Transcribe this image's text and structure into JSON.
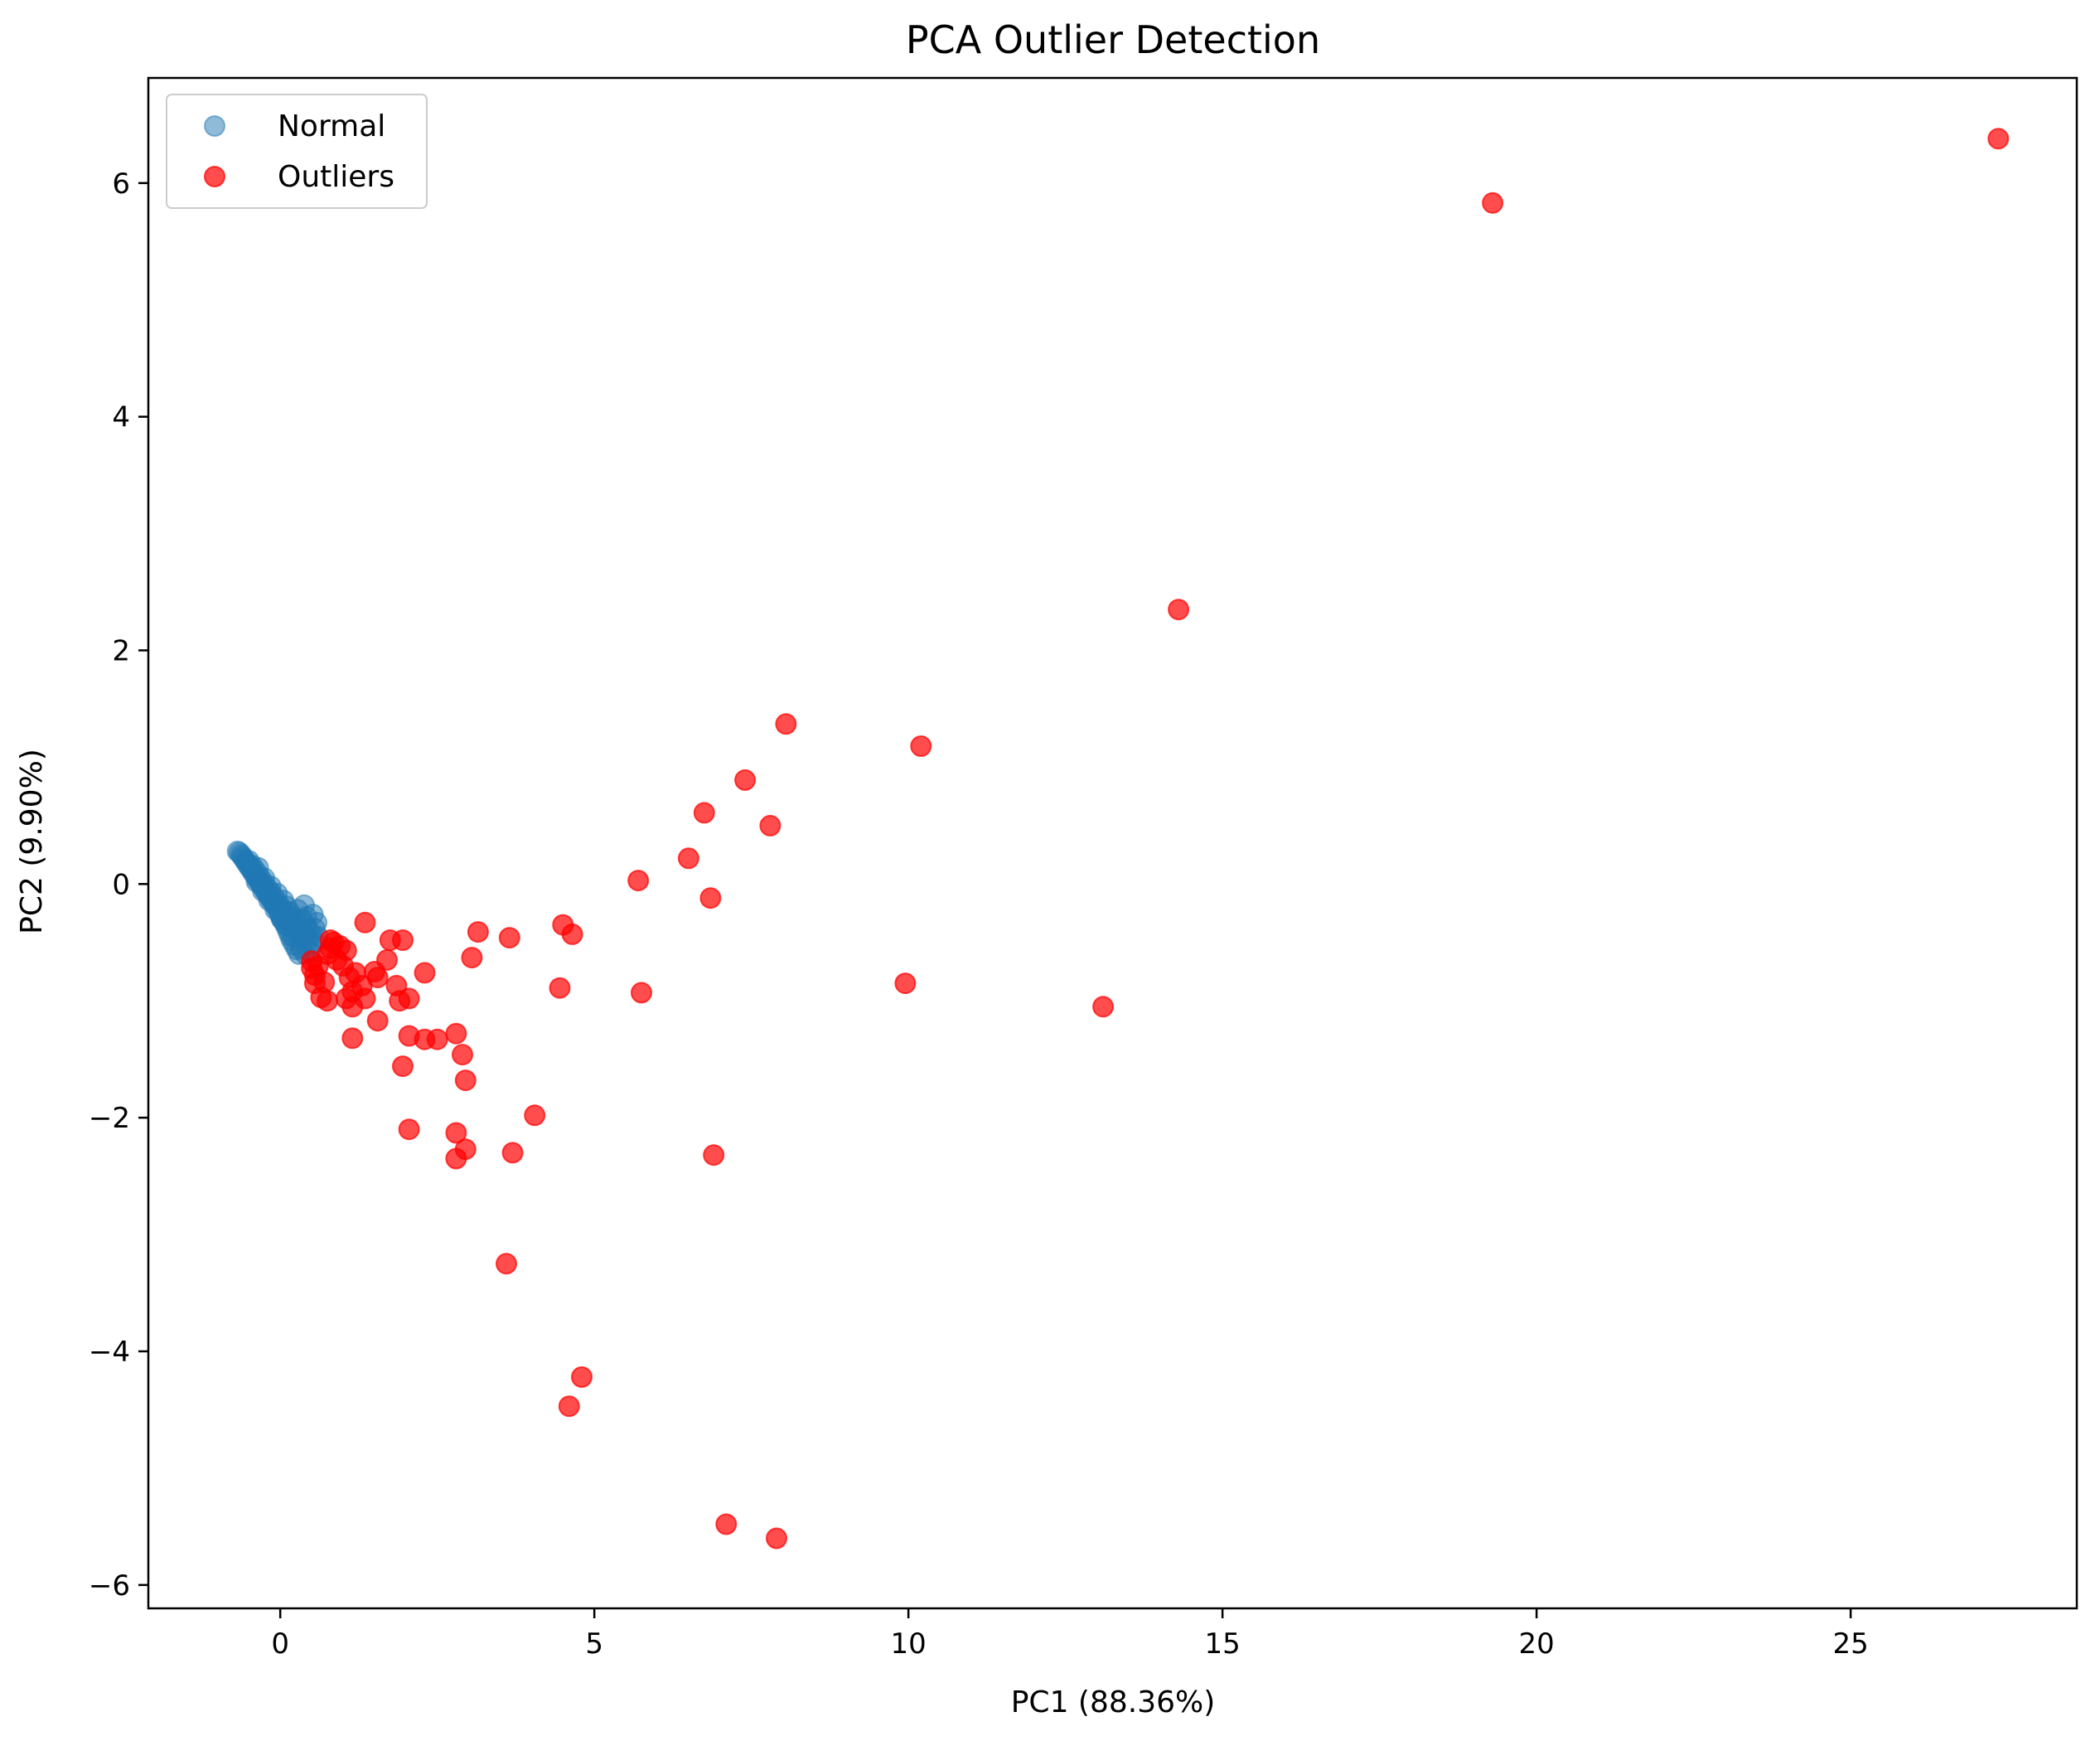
{
  "chart_data": {
    "type": "scatter",
    "title": "PCA Outlier Detection",
    "xlabel": "PC1 (88.36%)",
    "ylabel": "PC2 (9.90%)",
    "xlim": [
      -2.1,
      28.6
    ],
    "ylim": [
      -6.2,
      6.9
    ],
    "xticks": [
      0,
      5,
      10,
      15,
      20,
      25
    ],
    "xtick_labels": [
      "0",
      "5",
      "10",
      "15",
      "20",
      "25"
    ],
    "yticks": [
      -6,
      -4,
      -2,
      0,
      2,
      4,
      6
    ],
    "ytick_labels": [
      "−6",
      "−4",
      "−2",
      "0",
      "2",
      "4",
      "6"
    ],
    "grid": false,
    "legend_position": "top-left",
    "series": [
      {
        "name": "Normal",
        "color": "#1f77b4",
        "alpha": 0.5,
        "points": [
          [
            -0.68,
            0.28
          ],
          [
            -0.65,
            0.27
          ],
          [
            -0.62,
            0.25
          ],
          [
            -0.6,
            0.23
          ],
          [
            -0.57,
            0.21
          ],
          [
            -0.55,
            0.19
          ],
          [
            -0.52,
            0.17
          ],
          [
            -0.5,
            0.15
          ],
          [
            -0.47,
            0.13
          ],
          [
            -0.45,
            0.11
          ],
          [
            -0.42,
            0.09
          ],
          [
            -0.4,
            0.07
          ],
          [
            -0.37,
            0.05
          ],
          [
            -0.35,
            0.03
          ],
          [
            -0.32,
            0.01
          ],
          [
            -0.3,
            -0.01
          ],
          [
            -0.27,
            -0.03
          ],
          [
            -0.25,
            -0.05
          ],
          [
            -0.22,
            -0.07
          ],
          [
            -0.2,
            -0.09
          ],
          [
            -0.17,
            -0.11
          ],
          [
            -0.15,
            -0.13
          ],
          [
            -0.12,
            -0.15
          ],
          [
            -0.1,
            -0.17
          ],
          [
            -0.07,
            -0.19
          ],
          [
            -0.05,
            -0.21
          ],
          [
            -0.02,
            -0.24
          ],
          [
            0.0,
            -0.27
          ],
          [
            0.03,
            -0.3
          ],
          [
            0.06,
            -0.33
          ],
          [
            0.09,
            -0.36
          ],
          [
            0.12,
            -0.4
          ],
          [
            0.15,
            -0.44
          ],
          [
            0.18,
            -0.48
          ],
          [
            0.22,
            -0.52
          ],
          [
            0.26,
            -0.56
          ],
          [
            0.3,
            -0.6
          ],
          [
            -0.5,
            0.2
          ],
          [
            -0.45,
            0.16
          ],
          [
            -0.4,
            0.12
          ],
          [
            -0.35,
            0.08
          ],
          [
            -0.3,
            0.04
          ],
          [
            -0.25,
            0.0
          ],
          [
            -0.2,
            -0.04
          ],
          [
            -0.15,
            -0.07
          ],
          [
            -0.1,
            -0.11
          ],
          [
            -0.05,
            -0.15
          ],
          [
            0.0,
            -0.19
          ],
          [
            0.05,
            -0.23
          ],
          [
            0.1,
            -0.27
          ],
          [
            0.15,
            -0.31
          ],
          [
            0.2,
            -0.35
          ],
          [
            0.25,
            -0.39
          ],
          [
            0.3,
            -0.43
          ],
          [
            -0.35,
            0.14
          ],
          [
            -0.25,
            0.05
          ],
          [
            -0.15,
            -0.02
          ],
          [
            -0.05,
            -0.08
          ],
          [
            0.05,
            -0.14
          ],
          [
            0.1,
            -0.19
          ],
          [
            0.15,
            -0.24
          ],
          [
            0.2,
            -0.28
          ],
          [
            0.25,
            -0.32
          ],
          [
            0.3,
            -0.36
          ],
          [
            0.35,
            -0.4
          ],
          [
            0.4,
            -0.44
          ],
          [
            0.45,
            -0.48
          ],
          [
            0.5,
            -0.52
          ],
          [
            0.35,
            -0.3
          ],
          [
            0.4,
            -0.35
          ],
          [
            0.45,
            -0.39
          ],
          [
            0.5,
            -0.43
          ],
          [
            0.55,
            -0.38
          ],
          [
            0.38,
            -0.18
          ],
          [
            0.52,
            -0.26
          ],
          [
            0.58,
            -0.33
          ],
          [
            0.6,
            -0.45
          ],
          [
            0.28,
            -0.22
          ],
          [
            0.42,
            -0.28
          ],
          [
            0.55,
            -0.5
          ],
          [
            0.33,
            -0.55
          ],
          [
            0.4,
            -0.6
          ],
          [
            0.48,
            -0.58
          ],
          [
            0.2,
            -0.45
          ],
          [
            0.12,
            -0.36
          ],
          [
            0.02,
            -0.3
          ],
          [
            -0.08,
            -0.22
          ],
          [
            -0.18,
            -0.14
          ],
          [
            -0.28,
            -0.06
          ],
          [
            -0.38,
            0.02
          ]
        ]
      },
      {
        "name": "Outliers",
        "color": "#ff0000",
        "alpha": 0.7,
        "points": [
          [
            27.35,
            6.38
          ],
          [
            19.3,
            5.83
          ],
          [
            14.3,
            2.35
          ],
          [
            10.2,
            1.18
          ],
          [
            8.05,
            1.37
          ],
          [
            7.4,
            0.89
          ],
          [
            6.75,
            0.61
          ],
          [
            7.8,
            0.5
          ],
          [
            6.5,
            0.22
          ],
          [
            5.7,
            0.03
          ],
          [
            6.85,
            -0.12
          ],
          [
            4.5,
            -0.35
          ],
          [
            4.65,
            -0.43
          ],
          [
            3.65,
            -0.46
          ],
          [
            3.15,
            -0.41
          ],
          [
            3.05,
            -0.63
          ],
          [
            2.3,
            -0.76
          ],
          [
            1.95,
            -0.48
          ],
          [
            1.75,
            -0.48
          ],
          [
            1.35,
            -0.33
          ],
          [
            1.7,
            -0.65
          ],
          [
            1.5,
            -0.75
          ],
          [
            1.55,
            -0.8
          ],
          [
            1.3,
            -0.87
          ],
          [
            1.15,
            -0.92
          ],
          [
            1.05,
            -0.98
          ],
          [
            1.35,
            -0.98
          ],
          [
            1.85,
            -0.87
          ],
          [
            1.9,
            -1.0
          ],
          [
            2.05,
            -0.98
          ],
          [
            1.55,
            -1.17
          ],
          [
            1.15,
            -1.05
          ],
          [
            0.75,
            -1.0
          ],
          [
            0.65,
            -0.97
          ],
          [
            0.55,
            -0.85
          ],
          [
            0.55,
            -0.78
          ],
          [
            0.5,
            -0.72
          ],
          [
            0.5,
            -0.66
          ],
          [
            0.6,
            -0.7
          ],
          [
            0.75,
            -0.6
          ],
          [
            0.8,
            -0.55
          ],
          [
            0.85,
            -0.5
          ],
          [
            0.95,
            -0.53
          ],
          [
            1.05,
            -0.57
          ],
          [
            0.8,
            -0.48
          ],
          [
            0.9,
            -0.65
          ],
          [
            1.0,
            -0.7
          ],
          [
            1.1,
            -0.8
          ],
          [
            0.7,
            -0.84
          ],
          [
            1.2,
            -0.76
          ],
          [
            4.45,
            -0.89
          ],
          [
            5.75,
            -0.93
          ],
          [
            9.95,
            -0.85
          ],
          [
            13.1,
            -1.05
          ],
          [
            1.15,
            -1.32
          ],
          [
            2.05,
            -1.3
          ],
          [
            2.3,
            -1.33
          ],
          [
            2.5,
            -1.33
          ],
          [
            2.8,
            -1.28
          ],
          [
            2.9,
            -1.46
          ],
          [
            2.95,
            -1.68
          ],
          [
            1.95,
            -1.56
          ],
          [
            4.05,
            -1.98
          ],
          [
            2.05,
            -2.1
          ],
          [
            2.8,
            -2.13
          ],
          [
            2.95,
            -2.27
          ],
          [
            2.8,
            -2.35
          ],
          [
            3.7,
            -2.3
          ],
          [
            6.9,
            -2.32
          ],
          [
            3.6,
            -3.25
          ],
          [
            4.8,
            -4.22
          ],
          [
            4.6,
            -4.47
          ],
          [
            7.1,
            -5.48
          ],
          [
            7.9,
            -5.6
          ]
        ]
      }
    ]
  }
}
